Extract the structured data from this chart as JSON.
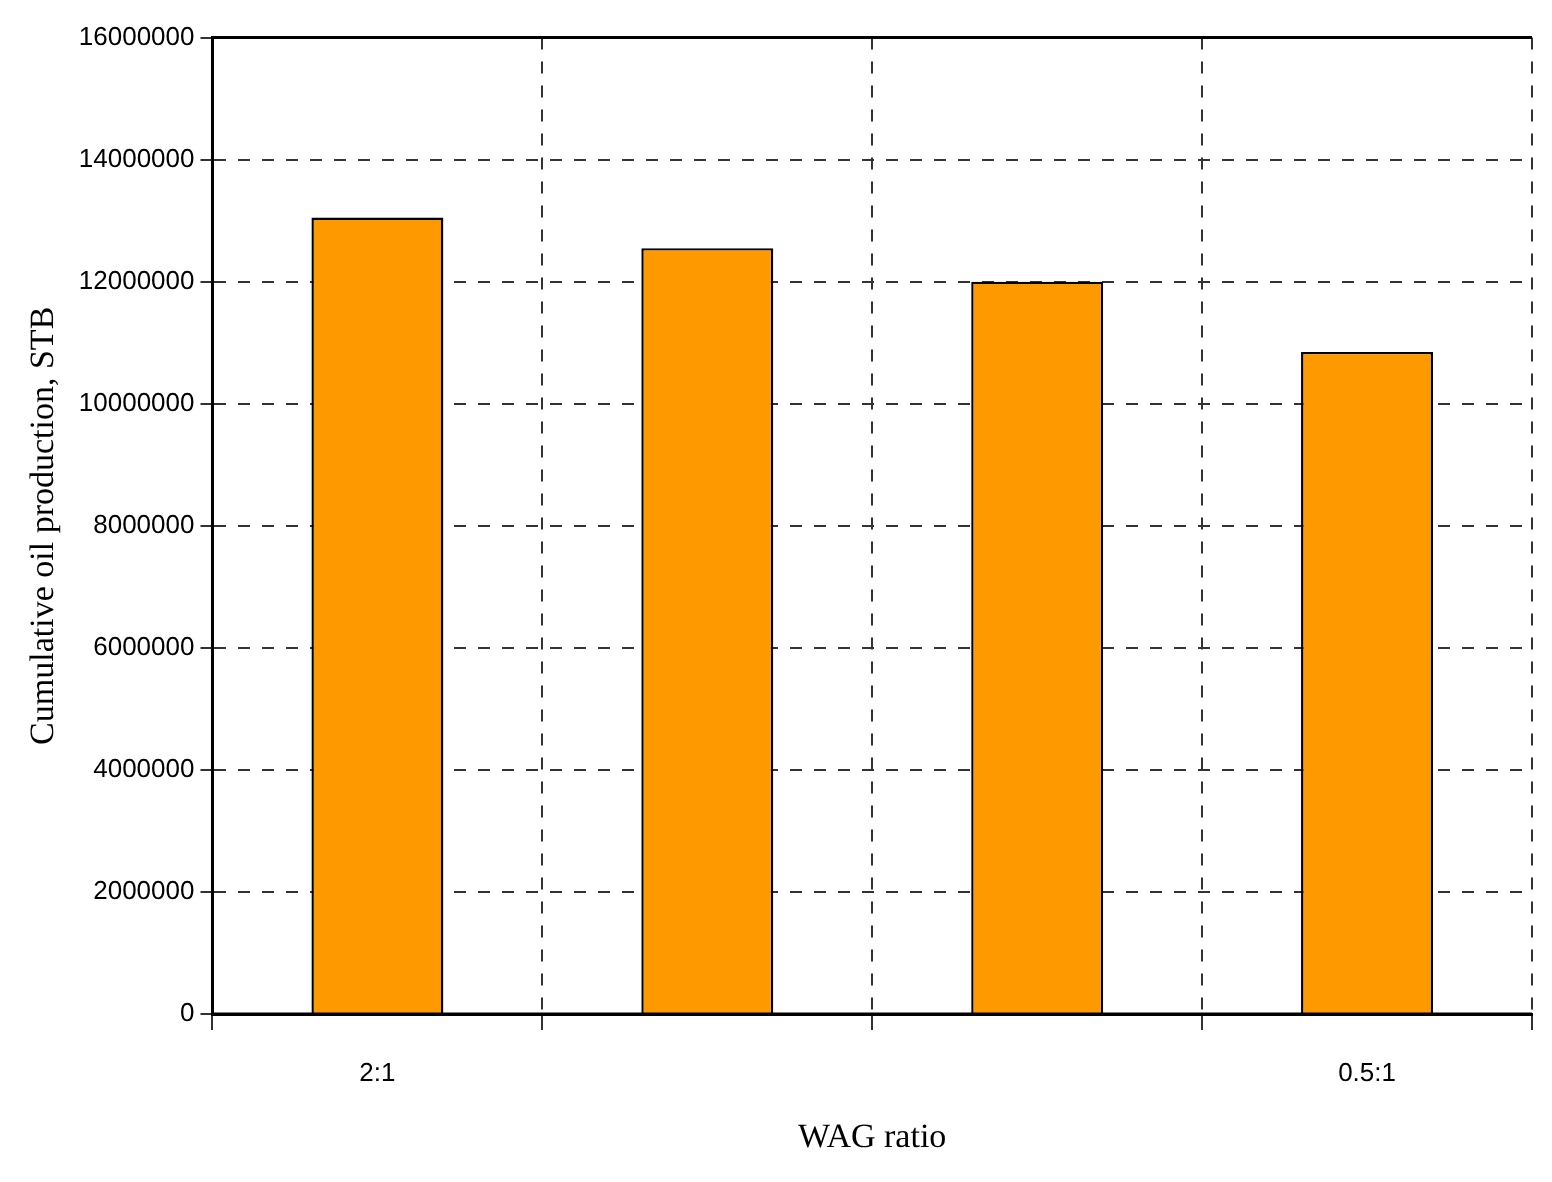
{
  "chart_data": {
    "type": "bar",
    "xlabel": "WAG ratio",
    "ylabel": "Cumulative oil production, STB",
    "categories": [
      "2:1",
      null,
      null,
      "0.5:1"
    ],
    "values": [
      13050000,
      12550000,
      12000000,
      10850000
    ],
    "color": "#ff9900",
    "ylim": [
      0,
      16000000
    ],
    "yticks": [
      0,
      2000000,
      4000000,
      6000000,
      8000000,
      10000000,
      12000000,
      14000000,
      16000000
    ],
    "grid": true,
    "legend": false
  }
}
